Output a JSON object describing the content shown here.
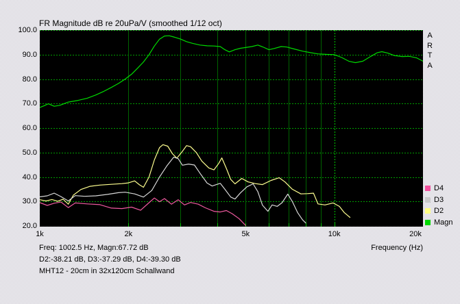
{
  "title": "FR Magnitude dB re 20uPa/V (smoothed 1/12 oct)",
  "x_axis_label": "Frequency (Hz)",
  "watermark_letters": [
    "A",
    "R",
    "T",
    "A"
  ],
  "status": {
    "line1": "Freq: 1002.5 Hz, Magn:67.72 dB",
    "line2": "D2:-38.21 dB, D3:-37.29 dB, D4:-39.30 dB",
    "line3": "MHT12 - 20cm in 32x120cm Schallwand"
  },
  "legend": [
    {
      "label": "D4",
      "color": "#f0509c"
    },
    {
      "label": "D3",
      "color": "#c8c8c8"
    },
    {
      "label": "D2",
      "color": "#ffff84"
    },
    {
      "label": "Magn",
      "color": "#00d800"
    }
  ],
  "colors": {
    "plot_background": "#000000",
    "grid_dashed": "#00a000",
    "grid_minor": "#006400",
    "grid_major_dashed": "#00c800",
    "tick": "#00c800",
    "text": "#000000"
  },
  "chart_data": {
    "type": "line",
    "x_scale": "log",
    "x_min": 1000,
    "x_max": 20000,
    "y_min": 20,
    "y_max": 100,
    "ylabel_unit": "dB",
    "y_ticks": [
      {
        "v": 100,
        "label": "100.0"
      },
      {
        "v": 90,
        "label": "90.0"
      },
      {
        "v": 80,
        "label": "80.0"
      },
      {
        "v": 70,
        "label": "70.0"
      },
      {
        "v": 60,
        "label": "60.0"
      },
      {
        "v": 50,
        "label": "50.0"
      },
      {
        "v": 40,
        "label": "40.0"
      },
      {
        "v": 30,
        "label": "30.0"
      },
      {
        "v": 20,
        "label": "20.0"
      }
    ],
    "x_ticks": [
      {
        "f": 1000,
        "label": "1k"
      },
      {
        "f": 2000,
        "label": "2k"
      },
      {
        "f": 5000,
        "label": "5k"
      },
      {
        "f": 10000,
        "label": "10k"
      },
      {
        "f": 20000,
        "label": "20k"
      }
    ],
    "grid": {
      "h_values": [
        100,
        90,
        80,
        70,
        60,
        50,
        40,
        30
      ],
      "v_minor": [
        2000,
        3000,
        4000,
        5000,
        6000,
        7000,
        8000,
        9000
      ],
      "v_major": [
        10000
      ],
      "axis_tick_freqs": [
        2000,
        3000,
        4000,
        5000,
        6000,
        7000,
        8000,
        9000,
        10000
      ]
    },
    "series": [
      {
        "name": "Magn",
        "color": "#00dc00",
        "points": [
          [
            1000,
            68.4
          ],
          [
            1030,
            69.0
          ],
          [
            1070,
            69.9
          ],
          [
            1120,
            68.9
          ],
          [
            1170,
            69.3
          ],
          [
            1250,
            70.6
          ],
          [
            1350,
            71.3
          ],
          [
            1450,
            72.2
          ],
          [
            1550,
            73.5
          ],
          [
            1650,
            75.0
          ],
          [
            1750,
            76.6
          ],
          [
            1850,
            78.2
          ],
          [
            1950,
            80.0
          ],
          [
            2050,
            82.0
          ],
          [
            2150,
            84.5
          ],
          [
            2250,
            87.0
          ],
          [
            2350,
            90.0
          ],
          [
            2450,
            93.5
          ],
          [
            2550,
            96.3
          ],
          [
            2650,
            97.6
          ],
          [
            2750,
            97.7
          ],
          [
            2850,
            97.2
          ],
          [
            3000,
            96.4
          ],
          [
            3150,
            95.3
          ],
          [
            3300,
            94.6
          ],
          [
            3500,
            93.9
          ],
          [
            3700,
            93.6
          ],
          [
            3900,
            93.5
          ],
          [
            4100,
            93.3
          ],
          [
            4250,
            92.0
          ],
          [
            4400,
            91.1
          ],
          [
            4600,
            92.0
          ],
          [
            4800,
            92.6
          ],
          [
            5000,
            92.9
          ],
          [
            5250,
            93.3
          ],
          [
            5500,
            93.9
          ],
          [
            5750,
            93.0
          ],
          [
            6000,
            92.0
          ],
          [
            6250,
            92.5
          ],
          [
            6600,
            93.3
          ],
          [
            6900,
            93.1
          ],
          [
            7300,
            92.3
          ],
          [
            7800,
            91.4
          ],
          [
            8300,
            90.8
          ],
          [
            8800,
            90.3
          ],
          [
            9400,
            90.1
          ],
          [
            10000,
            90.0
          ],
          [
            10600,
            88.8
          ],
          [
            11200,
            87.3
          ],
          [
            11800,
            86.7
          ],
          [
            12500,
            87.3
          ],
          [
            13300,
            89.3
          ],
          [
            14000,
            90.8
          ],
          [
            14500,
            91.2
          ],
          [
            15200,
            90.6
          ],
          [
            16000,
            89.6
          ],
          [
            17000,
            89.2
          ],
          [
            18000,
            89.3
          ],
          [
            19000,
            88.7
          ],
          [
            20000,
            87.3
          ]
        ]
      },
      {
        "name": "D2",
        "color": "#ffff90",
        "points": [
          [
            1000,
            30.7
          ],
          [
            1050,
            30.2
          ],
          [
            1100,
            30.8
          ],
          [
            1150,
            30.1
          ],
          [
            1200,
            30.9
          ],
          [
            1250,
            28.9
          ],
          [
            1300,
            32.6
          ],
          [
            1380,
            34.9
          ],
          [
            1480,
            36.2
          ],
          [
            1600,
            36.7
          ],
          [
            1750,
            37.0
          ],
          [
            1900,
            37.3
          ],
          [
            2000,
            37.6
          ],
          [
            2100,
            38.4
          ],
          [
            2180,
            36.8
          ],
          [
            2250,
            35.8
          ],
          [
            2350,
            40.0
          ],
          [
            2450,
            47.0
          ],
          [
            2550,
            52.0
          ],
          [
            2620,
            53.2
          ],
          [
            2720,
            52.6
          ],
          [
            2820,
            49.5
          ],
          [
            2920,
            47.7
          ],
          [
            3050,
            50.5
          ],
          [
            3150,
            52.8
          ],
          [
            3250,
            52.4
          ],
          [
            3400,
            50.0
          ],
          [
            3550,
            46.5
          ],
          [
            3750,
            43.7
          ],
          [
            3900,
            42.9
          ],
          [
            4050,
            45.5
          ],
          [
            4150,
            47.8
          ],
          [
            4300,
            43.5
          ],
          [
            4450,
            39.0
          ],
          [
            4600,
            37.2
          ],
          [
            4850,
            39.4
          ],
          [
            5100,
            38.0
          ],
          [
            5400,
            37.3
          ],
          [
            5700,
            36.9
          ],
          [
            6100,
            38.6
          ],
          [
            6500,
            39.7
          ],
          [
            6800,
            38.0
          ],
          [
            7200,
            35.0
          ],
          [
            7700,
            33.1
          ],
          [
            8100,
            33.2
          ],
          [
            8500,
            33.4
          ],
          [
            8800,
            29.0
          ],
          [
            9300,
            28.6
          ],
          [
            9900,
            29.4
          ],
          [
            10400,
            28.0
          ],
          [
            10800,
            25.5
          ],
          [
            11300,
            23.5
          ]
        ]
      },
      {
        "name": "D3",
        "color": "#d8d8d8",
        "points": [
          [
            1000,
            31.9
          ],
          [
            1060,
            32.3
          ],
          [
            1120,
            33.4
          ],
          [
            1180,
            32.0
          ],
          [
            1250,
            30.2
          ],
          [
            1320,
            32.4
          ],
          [
            1420,
            32.1
          ],
          [
            1550,
            32.3
          ],
          [
            1700,
            32.9
          ],
          [
            1850,
            33.6
          ],
          [
            1950,
            33.8
          ],
          [
            2100,
            33.1
          ],
          [
            2250,
            31.8
          ],
          [
            2400,
            34.5
          ],
          [
            2550,
            40.0
          ],
          [
            2700,
            44.5
          ],
          [
            2850,
            48.1
          ],
          [
            2950,
            47.5
          ],
          [
            3050,
            44.8
          ],
          [
            3200,
            45.3
          ],
          [
            3350,
            44.9
          ],
          [
            3500,
            41.5
          ],
          [
            3700,
            37.5
          ],
          [
            3850,
            36.3
          ],
          [
            4000,
            37.0
          ],
          [
            4100,
            37.4
          ],
          [
            4250,
            35.0
          ],
          [
            4450,
            31.8
          ],
          [
            4600,
            31.0
          ],
          [
            4800,
            33.5
          ],
          [
            5050,
            36.0
          ],
          [
            5300,
            37.2
          ],
          [
            5500,
            34.0
          ],
          [
            5700,
            28.5
          ],
          [
            5950,
            26.0
          ],
          [
            6150,
            28.6
          ],
          [
            6400,
            28.0
          ],
          [
            6650,
            29.5
          ],
          [
            6950,
            33.0
          ],
          [
            7200,
            30.0
          ],
          [
            7500,
            25.5
          ],
          [
            7800,
            22.5
          ],
          [
            8000,
            21.2
          ]
        ]
      },
      {
        "name": "D4",
        "color": "#f05aa0",
        "points": [
          [
            1000,
            29.5
          ],
          [
            1060,
            28.4
          ],
          [
            1120,
            29.3
          ],
          [
            1180,
            29.8
          ],
          [
            1250,
            27.5
          ],
          [
            1320,
            29.4
          ],
          [
            1450,
            29.0
          ],
          [
            1600,
            28.7
          ],
          [
            1750,
            27.3
          ],
          [
            1900,
            27.1
          ],
          [
            2050,
            27.7
          ],
          [
            2200,
            26.4
          ],
          [
            2350,
            29.5
          ],
          [
            2450,
            31.4
          ],
          [
            2550,
            29.9
          ],
          [
            2650,
            31.2
          ],
          [
            2800,
            28.9
          ],
          [
            2950,
            30.7
          ],
          [
            3100,
            28.6
          ],
          [
            3250,
            29.6
          ],
          [
            3450,
            28.9
          ],
          [
            3650,
            27.4
          ],
          [
            3900,
            26.0
          ],
          [
            4100,
            25.7
          ],
          [
            4300,
            26.3
          ],
          [
            4500,
            25.0
          ],
          [
            4750,
            23.0
          ],
          [
            5000,
            20.2
          ]
        ]
      }
    ]
  }
}
